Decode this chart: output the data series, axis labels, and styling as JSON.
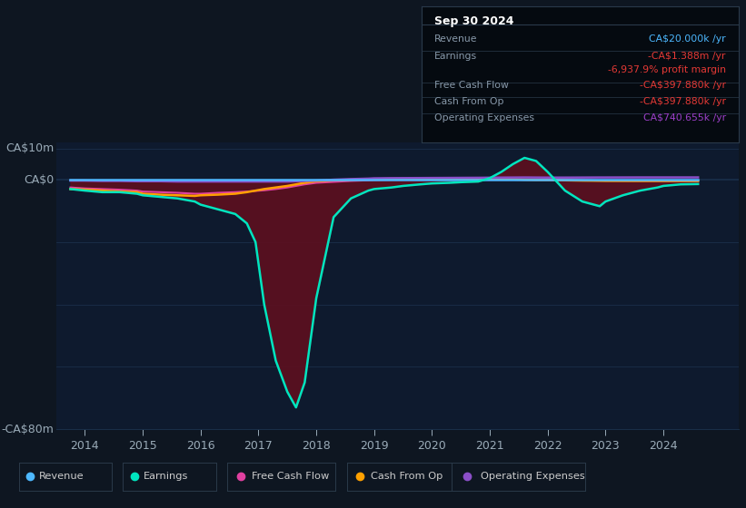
{
  "bg_color": "#0e1621",
  "plot_bg_color": "#0e1a2e",
  "grid_color": "#1a2f4a",
  "ylim": [
    -80,
    12
  ],
  "xlim": [
    2013.5,
    2025.3
  ],
  "xticks": [
    2014,
    2015,
    2016,
    2017,
    2018,
    2019,
    2020,
    2021,
    2022,
    2023,
    2024
  ],
  "colors": {
    "revenue": "#4db8ff",
    "earnings": "#00e5bf",
    "earnings_fill": "#5a1020",
    "free_cash_flow": "#e040a0",
    "cash_from_op": "#ffa000",
    "operating_expenses": "#8b4fc8",
    "operating_expenses_fill": "#2a1a4a"
  },
  "info_box": {
    "title": "Sep 30 2024",
    "rows": [
      {
        "label": "Revenue",
        "value": "CA$20.000k /yr",
        "value_color": "#4db8ff"
      },
      {
        "label": "Earnings",
        "value": "-CA$1.388m /yr",
        "value_color": "#e53935"
      },
      {
        "label": "",
        "value": "-6,937.9% profit margin",
        "value_color": "#e53935"
      },
      {
        "label": "Free Cash Flow",
        "value": "-CA$397.880k /yr",
        "value_color": "#e53935"
      },
      {
        "label": "Cash From Op",
        "value": "-CA$397.880k /yr",
        "value_color": "#e53935"
      },
      {
        "label": "Operating Expenses",
        "value": "CA$740.655k /yr",
        "value_color": "#9c3fc8"
      }
    ]
  },
  "series": {
    "years": [
      2013.75,
      2014.0,
      2014.3,
      2014.6,
      2014.9,
      2015.0,
      2015.3,
      2015.6,
      2015.9,
      2016.0,
      2016.3,
      2016.6,
      2016.8,
      2016.95,
      2017.1,
      2017.3,
      2017.5,
      2017.65,
      2017.8,
      2018.0,
      2018.3,
      2018.6,
      2018.9,
      2019.0,
      2019.3,
      2019.5,
      2019.8,
      2020.0,
      2020.3,
      2020.5,
      2020.8,
      2021.0,
      2021.2,
      2021.4,
      2021.6,
      2021.8,
      2022.0,
      2022.3,
      2022.6,
      2022.9,
      2023.0,
      2023.3,
      2023.6,
      2023.9,
      2024.0,
      2024.3,
      2024.6
    ],
    "revenue": [
      0.0,
      0.0,
      0.0,
      0.0,
      0.0,
      0.0,
      0.0,
      0.0,
      0.0,
      0.0,
      0.0,
      0.0,
      0.0,
      0.0,
      0.0,
      0.0,
      0.0,
      0.0,
      0.0,
      0.0,
      0.0,
      0.0,
      0.0,
      0.0,
      0.0,
      0.0,
      0.0,
      0.0,
      0.0,
      0.0,
      0.0,
      0.0,
      0.0,
      0.0,
      0.0,
      0.0,
      0.0,
      0.0,
      0.0,
      0.0,
      0.0,
      0.0,
      0.0,
      0.0,
      0.0,
      0.0,
      0.0
    ],
    "earnings": [
      -3.0,
      -3.5,
      -4.0,
      -4.0,
      -4.5,
      -5.0,
      -5.5,
      -6.0,
      -7.0,
      -8.0,
      -9.5,
      -11.0,
      -14.0,
      -20.0,
      -40.0,
      -58.0,
      -68.0,
      -73.0,
      -65.0,
      -38.0,
      -12.0,
      -6.0,
      -3.5,
      -3.0,
      -2.5,
      -2.0,
      -1.5,
      -1.2,
      -1.0,
      -0.8,
      -0.6,
      0.5,
      2.5,
      5.0,
      7.0,
      6.0,
      2.5,
      -3.5,
      -7.0,
      -8.5,
      -7.0,
      -5.0,
      -3.5,
      -2.5,
      -2.0,
      -1.5,
      -1.4
    ],
    "free_cash_flow": [
      -2.5,
      -2.8,
      -3.0,
      -3.2,
      -3.5,
      -3.8,
      -4.0,
      -4.2,
      -4.5,
      -4.5,
      -4.2,
      -4.0,
      -3.8,
      -3.6,
      -3.4,
      -3.0,
      -2.5,
      -2.0,
      -1.5,
      -1.0,
      -0.7,
      -0.4,
      -0.2,
      -0.1,
      0.0,
      0.0,
      0.0,
      0.0,
      0.0,
      0.0,
      0.0,
      0.1,
      0.1,
      0.1,
      0.0,
      0.0,
      0.0,
      -0.1,
      -0.2,
      -0.3,
      -0.3,
      -0.35,
      -0.38,
      -0.39,
      -0.4,
      -0.4,
      -0.4
    ],
    "cash_from_op": [
      -3.0,
      -3.2,
      -3.5,
      -3.8,
      -4.0,
      -4.5,
      -4.8,
      -5.0,
      -5.2,
      -5.0,
      -4.8,
      -4.5,
      -4.0,
      -3.5,
      -3.0,
      -2.5,
      -2.0,
      -1.5,
      -1.0,
      -0.5,
      -0.2,
      0.0,
      0.1,
      0.2,
      0.3,
      0.3,
      0.3,
      0.3,
      0.3,
      0.3,
      0.2,
      0.2,
      0.2,
      0.1,
      0.0,
      -0.1,
      -0.1,
      -0.2,
      -0.3,
      -0.35,
      -0.38,
      -0.39,
      -0.4,
      -0.4,
      -0.4,
      -0.4,
      -0.4
    ],
    "operating_expenses": [
      -0.3,
      -0.3,
      -0.4,
      -0.4,
      -0.5,
      -0.5,
      -0.5,
      -0.6,
      -0.6,
      -0.6,
      -0.6,
      -0.6,
      -0.6,
      -0.6,
      -0.6,
      -0.6,
      -0.6,
      -0.5,
      -0.4,
      -0.3,
      0.0,
      0.2,
      0.35,
      0.45,
      0.5,
      0.52,
      0.54,
      0.56,
      0.58,
      0.6,
      0.62,
      0.65,
      0.68,
      0.7,
      0.72,
      0.7,
      0.68,
      0.68,
      0.7,
      0.72,
      0.72,
      0.73,
      0.74,
      0.74,
      0.74,
      0.74,
      0.74
    ]
  }
}
